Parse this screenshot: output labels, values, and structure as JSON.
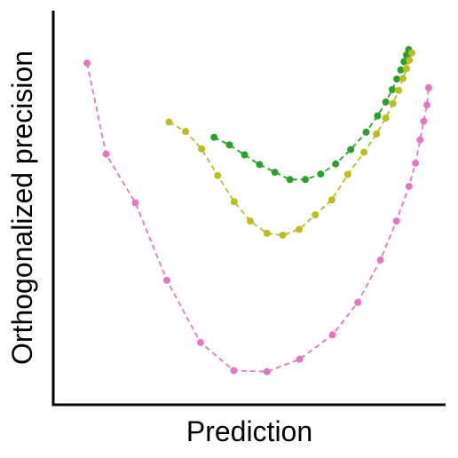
{
  "chart_data": {
    "type": "line",
    "title": "",
    "xlabel": "Prediction",
    "ylabel": "Orthogonalized precision",
    "xticks": false,
    "yticks": false,
    "grid": false,
    "legend": "none",
    "xlim": [
      0,
      100
    ],
    "ylim": [
      0,
      100
    ],
    "series": [
      {
        "color": "#2ca02c",
        "marker": "circle",
        "linestyle": "dashed",
        "x": [
          40.0,
          44.3,
          48.5,
          52.7,
          57.0,
          61.2,
          65.5,
          69.8,
          74.0,
          78.2,
          82.5,
          85.7,
          88.0,
          89.8,
          91.1,
          92.2,
          93.1,
          93.8,
          94.4
        ],
        "y": [
          69.1,
          67.0,
          64.3,
          61.6,
          59.5,
          57.5,
          57.5,
          59.0,
          61.8,
          65.7,
          70.5,
          75.0,
          78.8,
          82.2,
          85.1,
          87.6,
          89.9,
          91.7,
          93.2
        ]
      },
      {
        "color": "#bcbd22",
        "marker": "circle",
        "linestyle": "dashed",
        "x": [
          27.4,
          32.0,
          36.5,
          41.0,
          45.6,
          50.1,
          54.8,
          59.2,
          63.8,
          68.3,
          72.9,
          77.4,
          81.9,
          85.4,
          88.0,
          90.0,
          91.6,
          92.8,
          93.8,
          94.6,
          95.3
        ],
        "y": [
          73.3,
          70.7,
          65.9,
          58.6,
          51.4,
          46.1,
          42.7,
          42.2,
          43.8,
          47.8,
          51.9,
          58.9,
          65.0,
          70.0,
          74.4,
          78.4,
          82.0,
          85.3,
          88.0,
          90.3,
          92.3
        ]
      },
      {
        "color": "#e377c2",
        "marker": "circle",
        "linestyle": "dashed",
        "x": [
          4.5,
          9.8,
          18.0,
          26.8,
          36.2,
          45.5,
          54.8,
          63.9,
          73.1,
          80.2,
          86.5,
          91.0,
          94.5,
          96.3,
          97.6,
          98.6,
          99.5,
          100.0
        ],
        "y": [
          89.5,
          64.5,
          51.1,
          29.8,
          12.7,
          5.0,
          4.7,
          8.1,
          14.8,
          23.7,
          35.4,
          46.1,
          55.6,
          62.0,
          68.4,
          73.5,
          78.0,
          82.7
        ]
      }
    ]
  }
}
